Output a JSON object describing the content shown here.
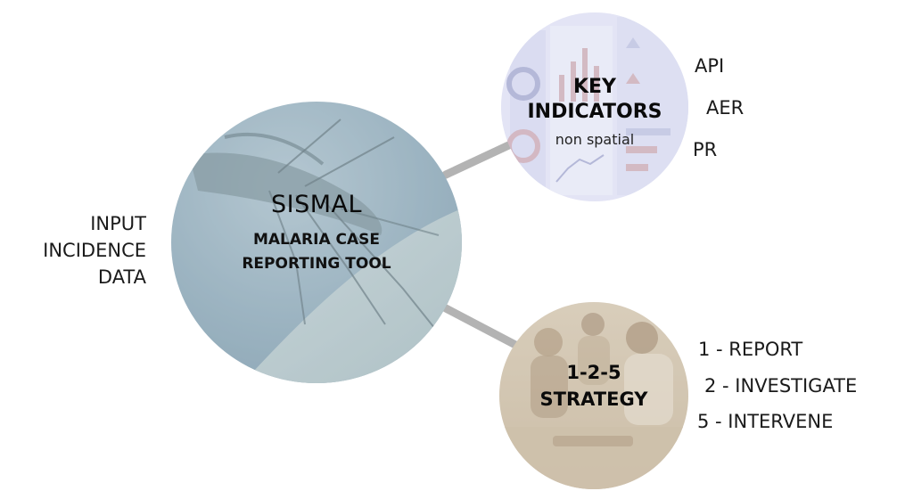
{
  "input_label": {
    "lines": [
      "INPUT",
      "INCIDENCE",
      "DATA"
    ]
  },
  "main_node": {
    "title": "SISMAL",
    "subtitle_lines": [
      "MALARIA CASE",
      "REPORTING TOOL"
    ]
  },
  "key_indicators_node": {
    "title_lines": [
      "KEY",
      "INDICATORS"
    ],
    "subtitle": "non spatial",
    "indicators": [
      "API",
      "AER",
      "PR"
    ]
  },
  "strategy_node": {
    "title_lines": [
      "1-2-5",
      "STRATEGY"
    ],
    "steps": [
      "1 - REPORT",
      "2 - INVESTIGATE",
      "5 - INTERVENE"
    ]
  },
  "colors": {
    "connector": "#b3b3b3",
    "main_circle": "#9fb6c3",
    "key_circle": "#dcdff3",
    "strategy_circle": "#d2c6b2"
  },
  "icons": {
    "main_circle_background": "mosquito-photo",
    "key_circle_background": "dashboard-screenshot",
    "strategy_circle_background": "field-workers-photo"
  }
}
